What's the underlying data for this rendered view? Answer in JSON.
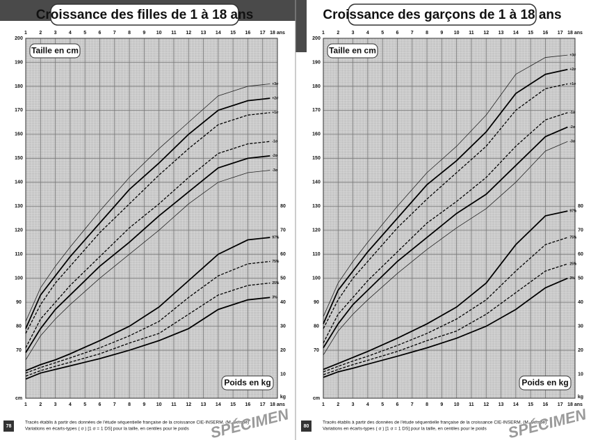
{
  "chart_data": [
    {
      "type": "line",
      "title": "Croissance des filles de 1 à 18 ans",
      "y_label": "Taille en cm",
      "y2_label": "Poids en kg",
      "y_unit": "cm",
      "y2_unit": "kg",
      "page_number": "78",
      "notes": [
        "Tracés établis à partir des données de l'étude séquentielle française de la croissance CIE-INSERM. (M. Sempé)",
        "Variations en écarts-types ( σ ) [1 σ = 1 DS] pour la taille, en centiles pour le poids"
      ],
      "watermark": "SPÉCIMEN",
      "xlim": [
        1,
        18
      ],
      "xticks": [
        1,
        2,
        3,
        4,
        5,
        6,
        7,
        8,
        9,
        10,
        11,
        12,
        13,
        14,
        15,
        16,
        17,
        {
          "value": 18,
          "label": "18 ans"
        }
      ],
      "ylim": [
        50,
        200
      ],
      "yticks": [
        70,
        80,
        90,
        100,
        110,
        120,
        130,
        140,
        150,
        160,
        170,
        180,
        190,
        200
      ],
      "y2lim": [
        0,
        150
      ],
      "y2ticks": [
        10,
        20,
        30,
        40,
        50,
        60,
        70,
        80
      ],
      "grid": true,
      "x": [
        1,
        2,
        3,
        4,
        6,
        8,
        10,
        12,
        14,
        16,
        17.5
      ],
      "series": [
        {
          "name": "+3σ",
          "color": "#222",
          "style": "thin",
          "values": [
            82,
            96,
            105,
            113,
            128,
            142,
            154,
            165,
            176,
            180,
            181
          ]
        },
        {
          "name": "+2σ",
          "color": "#000",
          "style": "thick",
          "values": [
            79,
            93,
            101,
            109,
            123,
            137,
            148,
            160,
            170,
            174,
            175
          ]
        },
        {
          "name": "+1σ",
          "color": "#000",
          "style": "dashed",
          "values": [
            77,
            89,
            98,
            105,
            119,
            131,
            143,
            154,
            164,
            168,
            169
          ]
        },
        {
          "name": "-1σ",
          "color": "#000",
          "style": "dashed",
          "values": [
            71,
            83,
            90,
            97,
            109,
            121,
            131,
            142,
            152,
            156,
            157
          ]
        },
        {
          "name": "-2σ",
          "color": "#000",
          "style": "thick",
          "values": [
            69,
            79,
            87,
            93,
            105,
            115,
            126,
            136,
            146,
            150,
            151
          ]
        },
        {
          "name": "-3σ",
          "color": "#222",
          "style": "thin",
          "values": [
            66,
            76,
            83,
            89,
            100,
            110,
            120,
            131,
            140,
            144,
            145
          ]
        },
        {
          "name": "97%",
          "color": "#000",
          "style": "thick",
          "axis": "y2",
          "values": [
            11.5,
            14,
            16,
            18.5,
            24,
            30,
            38,
            49,
            60,
            66,
            67
          ]
        },
        {
          "name": "75%",
          "color": "#000",
          "style": "dashed",
          "axis": "y2",
          "values": [
            10.5,
            12.8,
            14.8,
            16.8,
            21,
            26,
            32,
            42,
            51,
            56,
            57
          ]
        },
        {
          "name": "25%",
          "color": "#000",
          "style": "dashed",
          "axis": "y2",
          "values": [
            9.2,
            11.5,
            13.3,
            15,
            18.5,
            23,
            27,
            35,
            43,
            47,
            48
          ]
        },
        {
          "name": "3%",
          "color": "#000",
          "style": "thick",
          "axis": "y2",
          "values": [
            8,
            10.5,
            12,
            13.5,
            16.5,
            20,
            24,
            29,
            37,
            41,
            42
          ]
        }
      ]
    },
    {
      "type": "line",
      "title": "Croissance des garçons de 1 à 18 ans",
      "y_label": "Taille en cm",
      "y2_label": "Poids en kg",
      "y_unit": "cm",
      "y2_unit": "kg",
      "page_number": "80",
      "notes": [
        "Tracés établis à partir des données de l'étude séquentielle française de la croissance CIE-INSERM. (M. Sempé)",
        "Variations en écarts-types ( σ ) [1 σ = 1 DS] pour la taille, en centiles pour le poids"
      ],
      "watermark": "SPÉCIMEN",
      "xlim": [
        1,
        18
      ],
      "xticks": [
        1,
        2,
        3,
        4,
        5,
        6,
        7,
        8,
        9,
        10,
        11,
        12,
        13,
        14,
        15,
        16,
        17,
        {
          "value": 18,
          "label": "18 ans"
        }
      ],
      "ylim": [
        50,
        200
      ],
      "yticks": [
        70,
        80,
        90,
        100,
        110,
        120,
        130,
        140,
        150,
        160,
        170,
        180,
        190,
        200
      ],
      "y2lim": [
        0,
        150
      ],
      "y2ticks": [
        10,
        20,
        30,
        40,
        50,
        60,
        70,
        80
      ],
      "grid": true,
      "x": [
        1,
        2,
        3,
        4,
        6,
        8,
        10,
        12,
        14,
        16,
        17.5
      ],
      "series": [
        {
          "name": "+3σ",
          "color": "#222",
          "style": "thin",
          "values": [
            84,
            98,
            107,
            115,
            130,
            144,
            155,
            168,
            185,
            192,
            193
          ]
        },
        {
          "name": "+2σ",
          "color": "#000",
          "style": "thick",
          "values": [
            81,
            95,
            103,
            111,
            125,
            139,
            149,
            161,
            177,
            185,
            187
          ]
        },
        {
          "name": "+1σ",
          "color": "#000",
          "style": "dashed",
          "values": [
            79,
            91,
            100,
            107,
            121,
            133,
            144,
            155,
            170,
            179,
            181
          ]
        },
        {
          "name": "-1σ",
          "color": "#000",
          "style": "dashed",
          "values": [
            73,
            85,
            92,
            99,
            111,
            123,
            132,
            142,
            155,
            166,
            169
          ]
        },
        {
          "name": "-2σ",
          "color": "#000",
          "style": "thick",
          "values": [
            71,
            81,
            89,
            95,
            107,
            117,
            127,
            135,
            147,
            159,
            163
          ]
        },
        {
          "name": "-3σ",
          "color": "#222",
          "style": "thin",
          "values": [
            68,
            78,
            85,
            91,
            102,
            112,
            121,
            129,
            140,
            153,
            157
          ]
        },
        {
          "name": "97%",
          "color": "#000",
          "style": "thick",
          "axis": "y2",
          "values": [
            12,
            14.5,
            17,
            19.5,
            25,
            31,
            38,
            48,
            64,
            76,
            78
          ]
        },
        {
          "name": "75%",
          "color": "#000",
          "style": "dashed",
          "axis": "y2",
          "values": [
            11,
            13.3,
            15.5,
            17.5,
            22,
            27,
            33,
            41,
            53,
            64,
            67
          ]
        },
        {
          "name": "25%",
          "color": "#000",
          "style": "dashed",
          "axis": "y2",
          "values": [
            9.8,
            12,
            14,
            15.8,
            19.5,
            24,
            28,
            35,
            44,
            53,
            56
          ]
        },
        {
          "name": "3%",
          "color": "#000",
          "style": "thick",
          "axis": "y2",
          "values": [
            8.7,
            11,
            12.5,
            14.2,
            17.5,
            21,
            25,
            30,
            37,
            46,
            50
          ]
        }
      ]
    }
  ]
}
